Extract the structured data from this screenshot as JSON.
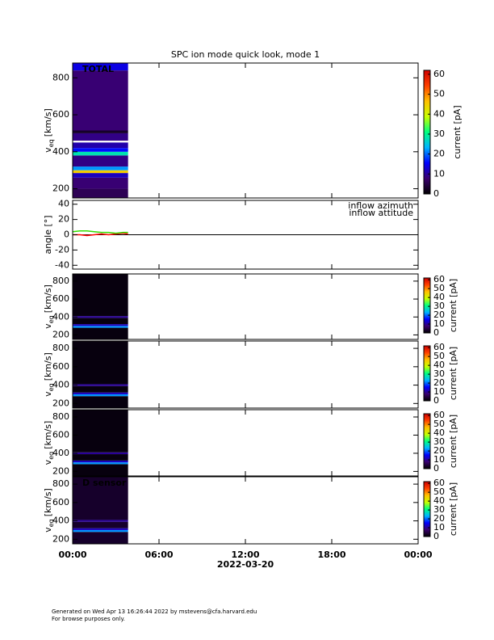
{
  "chart_data": [
    {
      "type": "heatmap",
      "title": "SPC ion mode quick look, mode 1",
      "label": "TOTAL",
      "y_label": "v",
      "y_label_sub": "eq",
      "y_label_unit": "[km/s]",
      "xlim": [
        0,
        24
      ],
      "xticks": [
        0,
        6,
        12,
        18,
        24
      ],
      "ylim": [
        150,
        880
      ],
      "yticks": [
        200,
        400,
        600,
        800
      ],
      "xbins": [
        0,
        3.85
      ],
      "ybins": [
        150,
        200,
        260,
        285,
        300,
        320,
        380,
        400,
        420,
        450,
        460,
        500,
        515,
        840,
        880
      ],
      "values": [
        6,
        8,
        12,
        45,
        22,
        9,
        28,
        16,
        11,
        null,
        9,
        3,
        8,
        14
      ],
      "colorbar_label": "current [pA]",
      "clim": [
        0,
        62
      ],
      "cticks": [
        0,
        10,
        20,
        30,
        40,
        50,
        60
      ],
      "colorscale": [
        "#000000",
        "#3a006e",
        "#0000ff",
        "#00b4ff",
        "#00ff80",
        "#c8ff00",
        "#ffc000",
        "#ff4000",
        "#d00000"
      ]
    },
    {
      "type": "line",
      "y_label": "angle [°]",
      "xlim": [
        0,
        24
      ],
      "xticks": [
        0,
        6,
        12,
        18,
        24
      ],
      "ylim": [
        -45,
        45
      ],
      "yticks": [
        -40,
        -20,
        0,
        20,
        40
      ],
      "x": [
        0,
        0.5,
        1,
        1.5,
        2,
        2.5,
        3,
        3.5,
        3.85
      ],
      "series": [
        {
          "name": "inflow azimuth",
          "color": "#ff0000",
          "values": [
            0,
            0,
            -1,
            0,
            1,
            0,
            1,
            2,
            1
          ]
        },
        {
          "name": "inflow attitude",
          "color": "#33dd00",
          "values": [
            4,
            5,
            5,
            4,
            3,
            3,
            2,
            3,
            3
          ]
        }
      ]
    },
    {
      "type": "heatmap",
      "y_label": "v",
      "y_label_sub": "eq",
      "y_label_unit": "[km/s]",
      "xlim": [
        0,
        24
      ],
      "xticks": [
        0,
        6,
        12,
        18,
        24
      ],
      "ylim": [
        150,
        880
      ],
      "yticks": [
        200,
        400,
        600,
        800
      ],
      "xbins": [
        0,
        3.85
      ],
      "ybins": [
        150,
        280,
        300,
        320,
        390,
        410,
        880
      ],
      "values": [
        1,
        22,
        12,
        1,
        10,
        1
      ],
      "colorbar_label": "current [pA]",
      "clim": [
        0,
        62
      ],
      "cticks": [
        0,
        10,
        20,
        30,
        40,
        50,
        60
      ],
      "colorscale": [
        "#000000",
        "#3a006e",
        "#0000ff",
        "#00b4ff",
        "#00ff80",
        "#c8ff00",
        "#ffc000",
        "#ff4000",
        "#d00000"
      ]
    },
    {
      "type": "heatmap",
      "y_label": "v",
      "y_label_sub": "eq",
      "y_label_unit": "[km/s]",
      "xlim": [
        0,
        24
      ],
      "xticks": [
        0,
        6,
        12,
        18,
        24
      ],
      "ylim": [
        150,
        880
      ],
      "yticks": [
        200,
        400,
        600,
        800
      ],
      "xbins": [
        0,
        3.85
      ],
      "ybins": [
        150,
        280,
        300,
        320,
        390,
        410,
        880
      ],
      "values": [
        1,
        22,
        12,
        1,
        10,
        1
      ],
      "colorbar_label": "current [pA]",
      "clim": [
        0,
        62
      ],
      "cticks": [
        0,
        10,
        20,
        30,
        40,
        50,
        60
      ],
      "colorscale": [
        "#000000",
        "#3a006e",
        "#0000ff",
        "#00b4ff",
        "#00ff80",
        "#c8ff00",
        "#ffc000",
        "#ff4000",
        "#d00000"
      ]
    },
    {
      "type": "heatmap",
      "y_label": "v",
      "y_label_sub": "eq",
      "y_label_unit": "[km/s]",
      "xlim": [
        0,
        24
      ],
      "xticks": [
        0,
        6,
        12,
        18,
        24
      ],
      "ylim": [
        150,
        880
      ],
      "yticks": [
        200,
        400,
        600,
        800
      ],
      "xbins": [
        0,
        3.85
      ],
      "ybins": [
        150,
        280,
        300,
        320,
        390,
        410,
        880
      ],
      "values": [
        1,
        22,
        12,
        1,
        10,
        1
      ],
      "colorbar_label": "current [pA]",
      "clim": [
        0,
        62
      ],
      "cticks": [
        0,
        10,
        20,
        30,
        40,
        50,
        60
      ],
      "colorscale": [
        "#000000",
        "#3a006e",
        "#0000ff",
        "#00b4ff",
        "#00ff80",
        "#c8ff00",
        "#ffc000",
        "#ff4000",
        "#d00000"
      ]
    },
    {
      "type": "heatmap",
      "label": "D sensor",
      "y_label": "v",
      "y_label_sub": "eq",
      "y_label_unit": "[km/s]",
      "xlim": [
        0,
        24
      ],
      "xticks": [
        {
          "value": 0,
          "label": "00:00"
        },
        {
          "value": 6,
          "label": "06:00"
        },
        {
          "value": 12,
          "label": "12:00"
        },
        {
          "value": 18,
          "label": "18:00"
        },
        {
          "value": 24,
          "label": "00:00"
        }
      ],
      "xlabel": "2022-03-20",
      "ylim": [
        150,
        880
      ],
      "yticks": [
        200,
        400,
        600,
        800
      ],
      "xbins": [
        0,
        3.85
      ],
      "ybins": [
        150,
        280,
        300,
        320,
        390,
        410,
        880
      ],
      "values": [
        3,
        22,
        12,
        3,
        10,
        3
      ],
      "colorbar_label": "current [pA]",
      "clim": [
        0,
        62
      ],
      "cticks": [
        0,
        10,
        20,
        30,
        40,
        50,
        60
      ],
      "colorscale": [
        "#000000",
        "#3a006e",
        "#0000ff",
        "#00b4ff",
        "#00ff80",
        "#c8ff00",
        "#ffc000",
        "#ff4000",
        "#d00000"
      ]
    }
  ],
  "footer": [
    "Generated on Wed Apr 13 16:26:44 2022 by mstevens@cfa.harvard.edu",
    "For browse purposes only."
  ]
}
